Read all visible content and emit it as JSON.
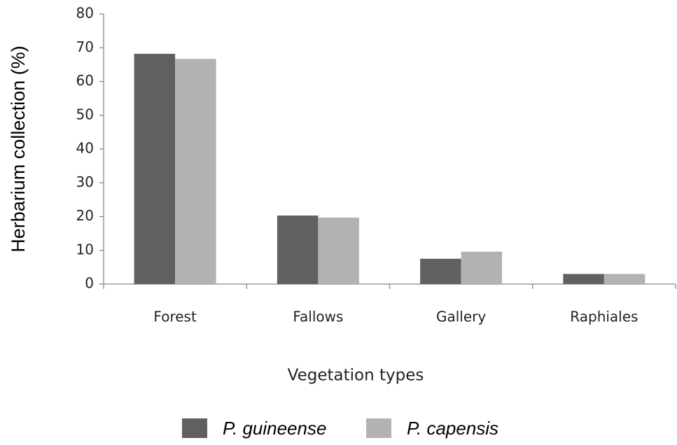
{
  "chart_data": {
    "type": "bar",
    "x_label": "Vegetation types",
    "y_label": "Herbarium collection (%)",
    "categories": [
      "Forest",
      "Fallows",
      "Gallery",
      "Raphiales"
    ],
    "series": [
      {
        "name": "P. guineense",
        "color": "#606060",
        "values": [
          68.2,
          20.3,
          7.5,
          3.0
        ]
      },
      {
        "name": "P. capensis",
        "color": "#b2b2b2",
        "values": [
          66.7,
          19.7,
          9.6,
          3.0
        ]
      }
    ],
    "ylim": [
      0,
      80
    ],
    "yticks": [
      0,
      10,
      20,
      30,
      40,
      50,
      60,
      70,
      80
    ],
    "grid": false
  }
}
